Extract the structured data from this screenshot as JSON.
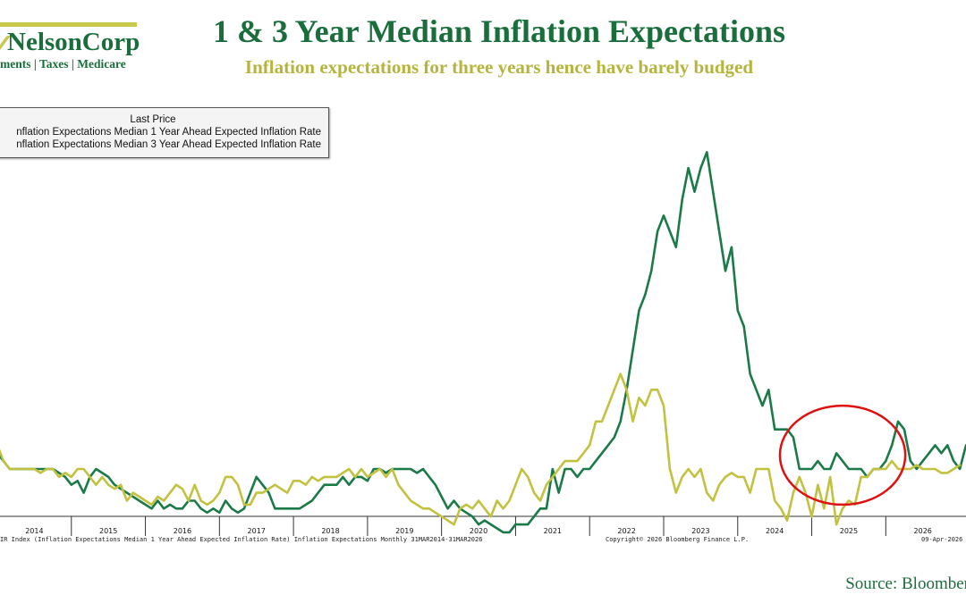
{
  "logo": {
    "name": "NelsonCorp",
    "tagline": "ments | Taxes | Medicare"
  },
  "header": {
    "title": "1 & 3 Year Median Inflation Expectations",
    "subtitle": "Inflation expectations for three years hence have barely budged"
  },
  "legend": {
    "title": "Last Price",
    "entries": [
      "nflation Expectations Median 1 Year Ahead Expected Inflation Rate",
      "nflation Expectations Median 3 Year Ahead Expected Inflation Rate"
    ]
  },
  "footer": {
    "index_note": "IR Index (Inflation Expectations Median 1 Year Ahead Expected Inflation Rate) Inflation Expectations Monthly 31MAR2014-31MAR2026",
    "copyright": "Copyright© 2026 Bloomberg Finance L.P.",
    "date_stamp": "09-Apr-2026 1",
    "source": "Source: Bloomber"
  },
  "colors": {
    "one_year": "#1a7a48",
    "three_year": "#c2c240",
    "highlight": "#e01010",
    "axis": "#333333"
  },
  "chart_data": {
    "type": "line",
    "x_start": "2014-01",
    "x_end": "2026-03",
    "x_tick_labels": [
      "2014",
      "2015",
      "2016",
      "2017",
      "2018",
      "2019",
      "2020",
      "2021",
      "2022",
      "2023",
      "2024",
      "2025",
      "2026"
    ],
    "ylim": [
      1.5,
      7.5
    ],
    "grid": false,
    "legend_position": "top-left",
    "highlight": {
      "shape": "ellipse",
      "x_from": "2024-09",
      "x_to": "2026-03",
      "y_from": 2.55,
      "y_to": 3.8
    },
    "series": [
      {
        "name": "nflation Expectations Median 1 Year Ahead Expected Inflation Rate",
        "color_key": "one_year",
        "values": [
          3.2,
          3.1,
          3.0,
          3.0,
          3.0,
          3.0,
          3.0,
          3.0,
          3.0,
          3.0,
          2.95,
          2.9,
          2.8,
          2.85,
          2.7,
          2.9,
          3.0,
          2.95,
          2.9,
          2.8,
          2.75,
          2.7,
          2.65,
          2.6,
          2.55,
          2.5,
          2.6,
          2.5,
          2.55,
          2.5,
          2.5,
          2.6,
          2.6,
          2.5,
          2.45,
          2.5,
          2.45,
          2.6,
          2.5,
          2.45,
          2.5,
          2.7,
          2.9,
          2.8,
          2.7,
          2.5,
          2.5,
          2.5,
          2.5,
          2.5,
          2.55,
          2.6,
          2.7,
          2.8,
          2.8,
          2.8,
          2.9,
          2.8,
          2.9,
          2.9,
          2.85,
          3.0,
          3.0,
          2.95,
          3.0,
          3.0,
          3.0,
          3.0,
          2.95,
          3.0,
          2.9,
          2.8,
          2.65,
          2.5,
          2.6,
          2.5,
          2.45,
          2.4,
          2.3,
          2.35,
          2.3,
          2.25,
          2.2,
          2.2,
          2.3,
          2.3,
          2.3,
          2.4,
          2.5,
          2.5,
          3.0,
          2.7,
          3.0,
          3.0,
          2.9,
          3.0,
          3.0,
          3.1,
          3.2,
          3.3,
          3.4,
          3.6,
          4.0,
          4.5,
          5.0,
          5.2,
          5.5,
          6.0,
          6.2,
          6.0,
          5.8,
          6.4,
          6.8,
          6.5,
          6.8,
          7.0,
          6.5,
          6.0,
          5.5,
          5.8,
          5.0,
          4.8,
          4.2,
          4.0,
          3.8,
          4.0,
          3.5,
          3.5,
          3.5,
          3.4,
          3.0,
          3.0,
          3.0,
          3.1,
          3.0,
          3.0,
          3.2,
          3.1,
          3.0,
          3.0,
          3.0,
          2.9,
          3.0,
          3.0,
          3.1,
          3.3,
          3.6,
          3.5,
          3.1,
          3.0,
          3.1,
          3.2,
          3.3,
          3.2,
          3.3,
          3.1,
          3.0,
          3.3
        ]
      },
      {
        "name": "nflation Expectations Median 3 Year Ahead Expected Inflation Rate",
        "color_key": "three_year",
        "values": [
          3.3,
          3.1,
          3.0,
          3.0,
          3.0,
          3.0,
          3.0,
          2.95,
          3.0,
          3.0,
          2.9,
          2.95,
          2.9,
          3.0,
          3.0,
          2.9,
          2.8,
          2.9,
          2.8,
          2.75,
          2.8,
          2.6,
          2.7,
          2.65,
          2.6,
          2.55,
          2.65,
          2.6,
          2.7,
          2.8,
          2.75,
          2.6,
          2.8,
          2.6,
          2.55,
          2.6,
          2.7,
          2.9,
          2.9,
          2.8,
          2.55,
          2.55,
          2.7,
          2.7,
          2.75,
          2.8,
          2.75,
          2.7,
          2.85,
          2.85,
          2.8,
          2.9,
          2.85,
          2.9,
          2.9,
          2.9,
          2.95,
          3.0,
          2.9,
          3.0,
          2.9,
          2.95,
          3.0,
          2.9,
          3.0,
          2.8,
          2.7,
          2.6,
          2.55,
          2.5,
          2.5,
          2.45,
          2.4,
          2.35,
          2.3,
          2.5,
          2.55,
          2.5,
          2.6,
          2.5,
          2.4,
          2.6,
          2.5,
          2.6,
          2.8,
          3.0,
          2.9,
          2.7,
          2.6,
          2.8,
          2.9,
          3.0,
          3.1,
          3.1,
          3.1,
          3.2,
          3.3,
          3.6,
          3.6,
          3.8,
          4.0,
          4.2,
          4.0,
          3.6,
          3.9,
          3.8,
          4.0,
          4.0,
          3.8,
          3.0,
          2.7,
          2.9,
          3.0,
          2.9,
          3.0,
          2.7,
          2.6,
          2.8,
          2.9,
          2.95,
          2.9,
          2.9,
          2.7,
          3.0,
          3.0,
          3.0,
          2.6,
          2.5,
          2.35,
          2.7,
          2.9,
          2.7,
          2.4,
          2.8,
          2.5,
          2.9,
          2.3,
          2.5,
          2.6,
          2.55,
          2.9,
          2.9,
          3.0,
          3.0,
          3.0,
          3.1,
          3.0,
          3.0,
          3.0,
          3.05,
          3.0,
          3.0,
          3.0,
          2.95,
          2.95,
          3.0,
          3.05
        ]
      }
    ]
  }
}
